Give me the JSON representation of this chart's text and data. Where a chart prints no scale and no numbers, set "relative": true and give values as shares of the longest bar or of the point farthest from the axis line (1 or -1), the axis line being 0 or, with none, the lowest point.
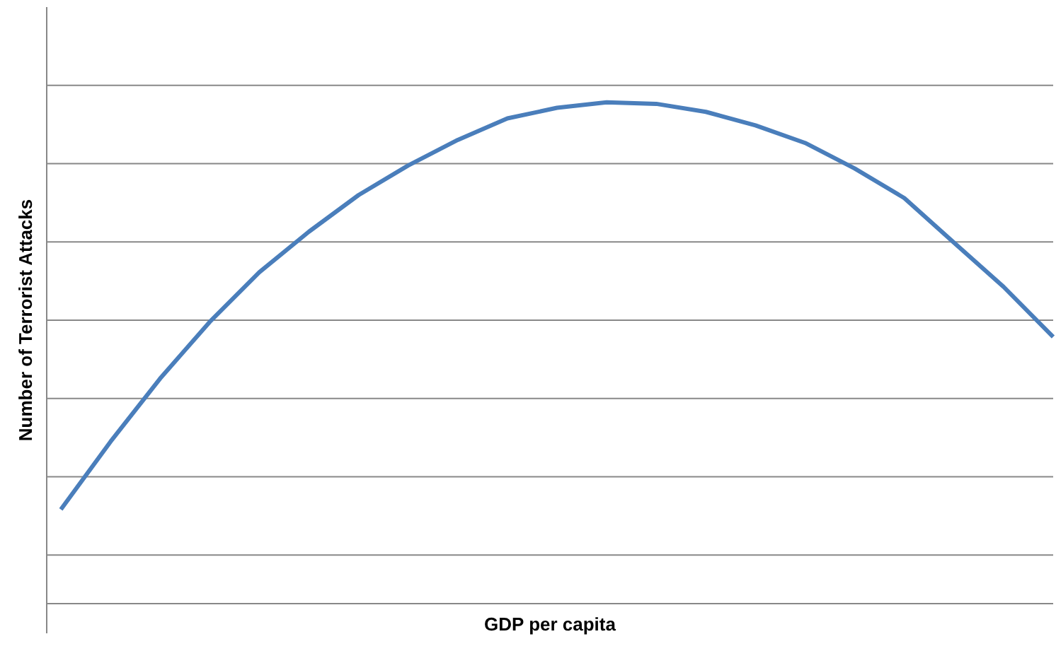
{
  "chart_data": {
    "type": "line",
    "xlabel": "GDP per capita",
    "ylabel": "Number of Terrorist Attacks",
    "relative": true,
    "grid": "y",
    "marker": "none",
    "categories": [
      null,
      null,
      null,
      null,
      null,
      null,
      null,
      null,
      null,
      null,
      null,
      null,
      null,
      null,
      null,
      null,
      null,
      null,
      null,
      null,
      null
    ],
    "series": [
      {
        "color": "#4a7ebb",
        "values": [
          0.188,
          0.323,
          0.449,
          0.562,
          0.661,
          0.742,
          0.815,
          0.874,
          0.925,
          0.968,
          0.989,
          1,
          0.997,
          0.981,
          0.954,
          0.919,
          0.868,
          0.809,
          0.72,
          0.632,
          0.532
        ]
      }
    ]
  }
}
